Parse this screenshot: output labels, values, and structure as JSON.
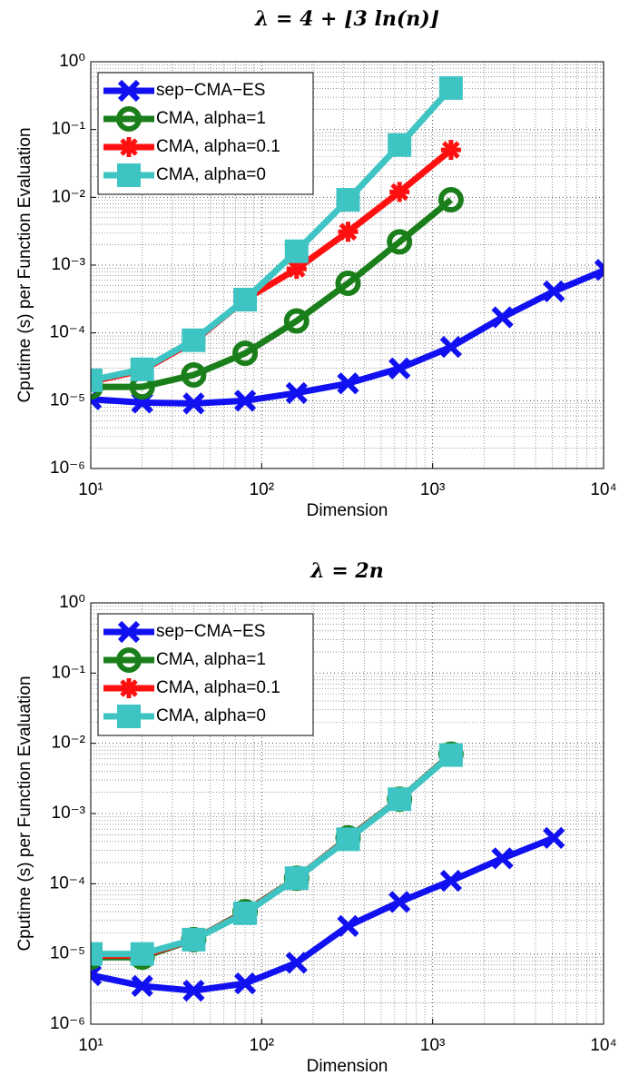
{
  "chart_data": [
    {
      "type": "line",
      "title": "λ = 4 + ⌊3 ln(n)⌋",
      "x_label": "Dimension",
      "y_label": "Cputime (s) per Function Evaluation",
      "x": [
        10,
        20,
        40,
        80,
        160,
        320,
        640,
        1280,
        2560,
        5120,
        10240
      ],
      "series": [
        {
          "name": "sep−CMA−ES",
          "color": "#1010f0",
          "marker": "x",
          "values": [
            1.05e-05,
            9.4e-06,
            9.1e-06,
            1e-05,
            1.3e-05,
            1.8e-05,
            3e-05,
            6.2e-05,
            0.00017,
            0.00041,
            0.00085
          ]
        },
        {
          "name": "CMA, alpha=1",
          "color": "#1a7f1a",
          "marker": "o",
          "values": [
            1.6e-05,
            1.6e-05,
            2.4e-05,
            5e-05,
            0.00015,
            0.00054,
            0.0022,
            0.0092,
            null,
            null,
            null
          ]
        },
        {
          "name": "CMA, alpha=0.1",
          "color": "#ff1010",
          "marker": "*",
          "values": [
            1.9e-05,
            2.8e-05,
            7.5e-05,
            0.00031,
            0.00088,
            0.0031,
            0.012,
            0.05,
            null,
            null,
            null
          ]
        },
        {
          "name": "CMA, alpha=0",
          "color": "#3fc4c4",
          "marker": "s",
          "values": [
            2e-05,
            2.9e-05,
            7.8e-05,
            0.00031,
            0.0016,
            0.0092,
            0.059,
            0.41,
            null,
            null,
            null
          ]
        }
      ],
      "log_x": true,
      "log_y": true,
      "grid": true,
      "minor_grid": true,
      "legend": "upper left",
      "xlim": [
        10,
        10000
      ],
      "ylim": [
        1e-06,
        1
      ],
      "xticks": [
        {
          "value": 10,
          "label": "10¹"
        },
        {
          "value": 100,
          "label": "10²"
        },
        {
          "value": 1000,
          "label": "10³"
        },
        {
          "value": 10000,
          "label": "10⁴"
        }
      ],
      "yticks": [
        {
          "value": 1e-06,
          "label": "10⁻⁶"
        },
        {
          "value": 1e-05,
          "label": "10⁻⁵"
        },
        {
          "value": 0.0001,
          "label": "10⁻⁴"
        },
        {
          "value": 0.001,
          "label": "10⁻³"
        },
        {
          "value": 0.01,
          "label": "10⁻²"
        },
        {
          "value": 0.1,
          "label": "10⁻¹"
        },
        {
          "value": 1,
          "label": "10⁰"
        }
      ]
    },
    {
      "type": "line",
      "title": "λ = 2n",
      "x_label": "Dimension",
      "y_label": "Cputime (s) per Function Evaluation",
      "x": [
        10,
        20,
        40,
        80,
        160,
        320,
        640,
        1280,
        2560,
        5120
      ],
      "series": [
        {
          "name": "sep−CMA−ES",
          "color": "#1010f0",
          "marker": "x",
          "values": [
            5e-06,
            3.5e-06,
            3e-06,
            3.8e-06,
            7.5e-06,
            2.5e-05,
            5.5e-05,
            0.00011,
            0.00023,
            0.00045
          ]
        },
        {
          "name": "CMA, alpha=1",
          "color": "#1a7f1a",
          "marker": "o",
          "values": [
            9e-06,
            9e-06,
            1.6e-05,
            4e-05,
            0.00012,
            0.00045,
            0.0016,
            0.007,
            null,
            null
          ]
        },
        {
          "name": "CMA, alpha=0.1",
          "color": "#ff1010",
          "marker": "*",
          "values": [
            9.5e-06,
            9.5e-06,
            1.6e-05,
            3.9e-05,
            0.00012,
            0.00044,
            0.0016,
            0.0069,
            null,
            null
          ]
        },
        {
          "name": "CMA, alpha=0",
          "color": "#3fc4c4",
          "marker": "s",
          "values": [
            1e-05,
            1e-05,
            1.6e-05,
            3.8e-05,
            0.00012,
            0.00043,
            0.0016,
            0.0068,
            null,
            null
          ]
        }
      ],
      "log_x": true,
      "log_y": true,
      "grid": true,
      "minor_grid": true,
      "legend": "upper left",
      "xlim": [
        10,
        10000
      ],
      "ylim": [
        1e-06,
        1
      ],
      "xticks": [
        {
          "value": 10,
          "label": "10¹"
        },
        {
          "value": 100,
          "label": "10²"
        },
        {
          "value": 1000,
          "label": "10³"
        },
        {
          "value": 10000,
          "label": "10⁴"
        }
      ],
      "yticks": [
        {
          "value": 1e-06,
          "label": "10⁻⁶"
        },
        {
          "value": 1e-05,
          "label": "10⁻⁵"
        },
        {
          "value": 0.0001,
          "label": "10⁻⁴"
        },
        {
          "value": 0.001,
          "label": "10⁻³"
        },
        {
          "value": 0.01,
          "label": "10⁻²"
        },
        {
          "value": 0.1,
          "label": "10⁻¹"
        },
        {
          "value": 1,
          "label": "10⁰"
        }
      ]
    }
  ]
}
